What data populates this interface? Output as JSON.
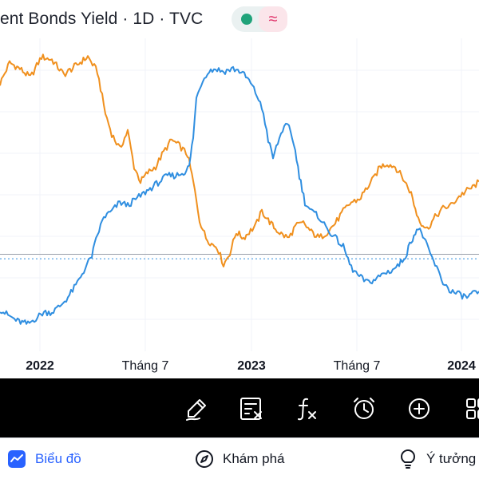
{
  "header": {
    "title": "ent Bonds Yield · 1D · TVC",
    "status_dot_color": "#1fa37a",
    "wave_icon_color": "#e0336a",
    "wave_glyph": "≈"
  },
  "chart_data": {
    "type": "line",
    "xlabel": "",
    "ylabel": "",
    "x_tick_labels": [
      {
        "label": "2022",
        "bold": true
      },
      {
        "label": "Tháng 7",
        "bold": false
      },
      {
        "label": "2023",
        "bold": true
      },
      {
        "label": "Tháng 7",
        "bold": false
      },
      {
        "label": "2024",
        "bold": true
      }
    ],
    "y_range": [
      0,
      100
    ],
    "grid": true,
    "series": [
      {
        "color": "#f0901e",
        "values": [
          [
            0,
            88
          ],
          [
            12,
            95
          ],
          [
            25,
            93
          ],
          [
            38,
            90
          ],
          [
            52,
            97
          ],
          [
            65,
            96
          ],
          [
            80,
            91
          ],
          [
            95,
            94
          ],
          [
            110,
            97
          ],
          [
            122,
            92
          ],
          [
            132,
            78
          ],
          [
            140,
            71
          ],
          [
            150,
            66
          ],
          [
            160,
            72
          ],
          [
            168,
            60
          ],
          [
            176,
            55
          ],
          [
            185,
            58
          ],
          [
            195,
            60
          ],
          [
            205,
            65
          ],
          [
            215,
            69
          ],
          [
            225,
            67
          ],
          [
            235,
            64
          ],
          [
            242,
            55
          ],
          [
            250,
            42
          ],
          [
            258,
            36
          ],
          [
            265,
            34
          ],
          [
            272,
            33
          ],
          [
            280,
            27
          ],
          [
            288,
            31
          ],
          [
            296,
            38
          ],
          [
            305,
            36
          ],
          [
            312,
            38
          ],
          [
            320,
            40
          ],
          [
            328,
            45
          ],
          [
            336,
            42
          ],
          [
            345,
            39
          ],
          [
            354,
            37
          ],
          [
            362,
            36
          ],
          [
            370,
            40
          ],
          [
            380,
            41
          ],
          [
            390,
            38
          ],
          [
            400,
            36
          ],
          [
            410,
            38
          ],
          [
            420,
            41
          ],
          [
            430,
            45
          ],
          [
            440,
            48
          ],
          [
            450,
            49
          ],
          [
            460,
            53
          ],
          [
            468,
            56
          ],
          [
            476,
            60
          ],
          [
            485,
            61
          ],
          [
            495,
            60
          ],
          [
            505,
            56
          ],
          [
            515,
            51
          ],
          [
            522,
            44
          ],
          [
            528,
            41
          ],
          [
            535,
            39
          ],
          [
            545,
            43
          ],
          [
            555,
            46
          ],
          [
            565,
            47
          ],
          [
            575,
            50
          ],
          [
            585,
            52
          ],
          [
            592,
            53
          ],
          [
            600,
            55
          ]
        ]
      },
      {
        "color": "#2f8ee0",
        "values": [
          [
            0,
            12
          ],
          [
            10,
            10
          ],
          [
            22,
            8
          ],
          [
            35,
            7
          ],
          [
            45,
            9
          ],
          [
            55,
            11
          ],
          [
            65,
            11
          ],
          [
            75,
            13
          ],
          [
            85,
            16
          ],
          [
            95,
            20
          ],
          [
            105,
            25
          ],
          [
            115,
            30
          ],
          [
            122,
            37
          ],
          [
            130,
            43
          ],
          [
            140,
            45
          ],
          [
            150,
            48
          ],
          [
            160,
            47
          ],
          [
            170,
            49
          ],
          [
            180,
            51
          ],
          [
            190,
            53
          ],
          [
            200,
            55
          ],
          [
            210,
            57
          ],
          [
            220,
            57
          ],
          [
            230,
            58
          ],
          [
            237,
            60
          ],
          [
            242,
            70
          ],
          [
            246,
            83
          ],
          [
            252,
            88
          ],
          [
            260,
            92
          ],
          [
            270,
            93
          ],
          [
            280,
            92
          ],
          [
            292,
            93
          ],
          [
            302,
            92
          ],
          [
            312,
            89
          ],
          [
            322,
            84
          ],
          [
            330,
            78
          ],
          [
            336,
            69
          ],
          [
            342,
            63
          ],
          [
            348,
            68
          ],
          [
            356,
            74
          ],
          [
            362,
            73
          ],
          [
            368,
            68
          ],
          [
            375,
            57
          ],
          [
            382,
            48
          ],
          [
            390,
            45
          ],
          [
            400,
            43
          ],
          [
            410,
            39
          ],
          [
            420,
            36
          ],
          [
            430,
            33
          ],
          [
            440,
            26
          ],
          [
            450,
            23
          ],
          [
            460,
            21
          ],
          [
            470,
            22
          ],
          [
            480,
            24
          ],
          [
            490,
            25
          ],
          [
            500,
            27
          ],
          [
            508,
            30
          ],
          [
            515,
            35
          ],
          [
            522,
            39
          ],
          [
            528,
            38
          ],
          [
            535,
            33
          ],
          [
            545,
            27
          ],
          [
            555,
            21
          ],
          [
            565,
            18
          ],
          [
            575,
            17
          ],
          [
            585,
            16
          ],
          [
            592,
            17
          ],
          [
            600,
            18
          ]
        ]
      }
    ],
    "ref_line_solid": 30.5,
    "ref_line_dotted": 29.0
  },
  "toolbar": {
    "icons": [
      "pencil-icon",
      "indicators-icon",
      "formula-icon",
      "alert-clock-icon",
      "add-circle-icon",
      "grid-icon"
    ]
  },
  "bottom_nav": {
    "items": [
      {
        "label": "Biểu đồ",
        "icon": "chart-icon",
        "active": true
      },
      {
        "label": "Khám phá",
        "icon": "compass-icon",
        "active": false
      },
      {
        "label": "Ý tưởng",
        "icon": "lightbulb-icon",
        "active": false
      }
    ],
    "active_color": "#2962ff"
  }
}
